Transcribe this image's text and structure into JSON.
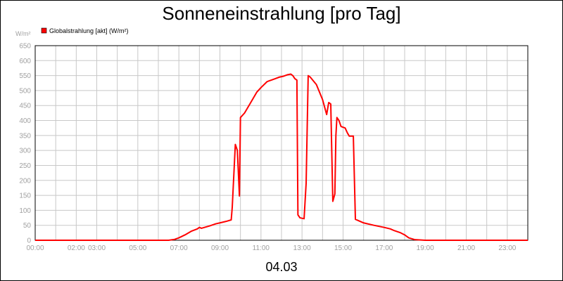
{
  "chart_data": {
    "type": "line",
    "title": "Sonneneinstrahlung [pro Tag]",
    "subtitle": "04.03",
    "y_unit_label": "W/m²",
    "xlim": [
      0,
      24
    ],
    "ylim": [
      0,
      650
    ],
    "y_ticks": [
      0,
      50,
      100,
      150,
      200,
      250,
      300,
      350,
      400,
      450,
      500,
      550,
      600,
      650
    ],
    "x_ticks": [
      {
        "x": 0,
        "label": "00:00"
      },
      {
        "x": 2,
        "label": "02:00"
      },
      {
        "x": 3,
        "label": "03:00"
      },
      {
        "x": 5,
        "label": "05:00"
      },
      {
        "x": 7,
        "label": "07:00"
      },
      {
        "x": 9,
        "label": "09:00"
      },
      {
        "x": 11,
        "label": "11:00"
      },
      {
        "x": 13,
        "label": "13:00"
      },
      {
        "x": 15,
        "label": "15:00"
      },
      {
        "x": 17,
        "label": "17:00"
      },
      {
        "x": 19,
        "label": "19:00"
      },
      {
        "x": 21,
        "label": "21:00"
      },
      {
        "x": 23,
        "label": "23:00"
      }
    ],
    "grid": true,
    "legend_position": "top-left",
    "series": [
      {
        "name": "Globalstrahlung [akt] (W/m²)",
        "color": "#ff0000",
        "x": [
          0,
          6.5,
          6.8,
          7.0,
          7.3,
          7.6,
          7.9,
          8.0,
          8.1,
          8.5,
          8.8,
          9.0,
          9.3,
          9.55,
          9.6,
          9.75,
          9.85,
          9.95,
          10.0,
          10.2,
          10.5,
          10.8,
          11.0,
          11.3,
          11.5,
          11.7,
          11.9,
          12.1,
          12.3,
          12.45,
          12.55,
          12.65,
          12.75,
          12.8,
          12.9,
          13.1,
          13.2,
          13.3,
          13.4,
          13.7,
          14.0,
          14.2,
          14.3,
          14.4,
          14.5,
          14.6,
          14.65,
          14.7,
          14.8,
          14.9,
          15.1,
          15.2,
          15.3,
          15.5,
          15.6,
          16.0,
          16.5,
          17.0,
          17.3,
          17.5,
          17.8,
          18.0,
          18.2,
          18.5,
          19.0,
          24.0
        ],
        "values": [
          0,
          0,
          3,
          8,
          18,
          30,
          38,
          43,
          40,
          48,
          55,
          58,
          63,
          68,
          110,
          320,
          300,
          148,
          410,
          425,
          460,
          495,
          510,
          530,
          535,
          540,
          545,
          548,
          553,
          555,
          550,
          540,
          535,
          85,
          75,
          72,
          190,
          550,
          545,
          520,
          470,
          420,
          460,
          455,
          130,
          155,
          350,
          410,
          400,
          380,
          375,
          360,
          348,
          348,
          70,
          58,
          50,
          43,
          38,
          32,
          25,
          18,
          8,
          2,
          0,
          0
        ]
      }
    ]
  }
}
